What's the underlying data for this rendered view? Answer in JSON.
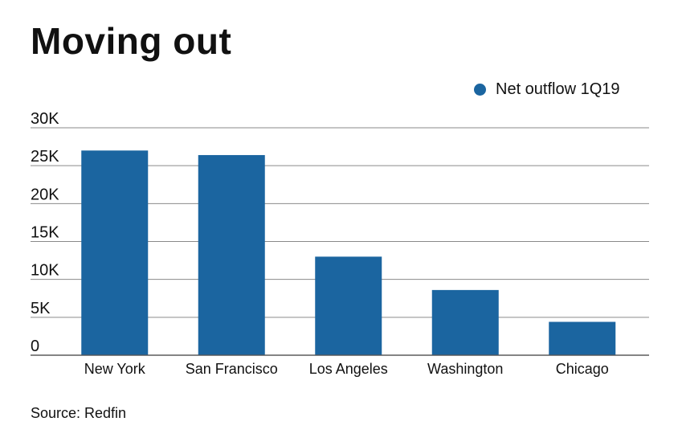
{
  "chart_data": {
    "type": "bar",
    "title": "Moving out",
    "categories": [
      "New York",
      "San Francisco",
      "Los Angeles",
      "Washington",
      "Chicago"
    ],
    "series": [
      {
        "name": "Net outflow 1Q19",
        "values": [
          27000,
          26400,
          13000,
          8600,
          4400
        ],
        "color": "#1b65a0"
      }
    ],
    "yticks": [
      "0",
      "5K",
      "10K",
      "15K",
      "20K",
      "25K",
      "30K"
    ],
    "ylim": [
      0,
      30000
    ],
    "ytick_step": 5000,
    "grid": true,
    "legend_position": "top-right",
    "source": "Source: Redfin"
  }
}
